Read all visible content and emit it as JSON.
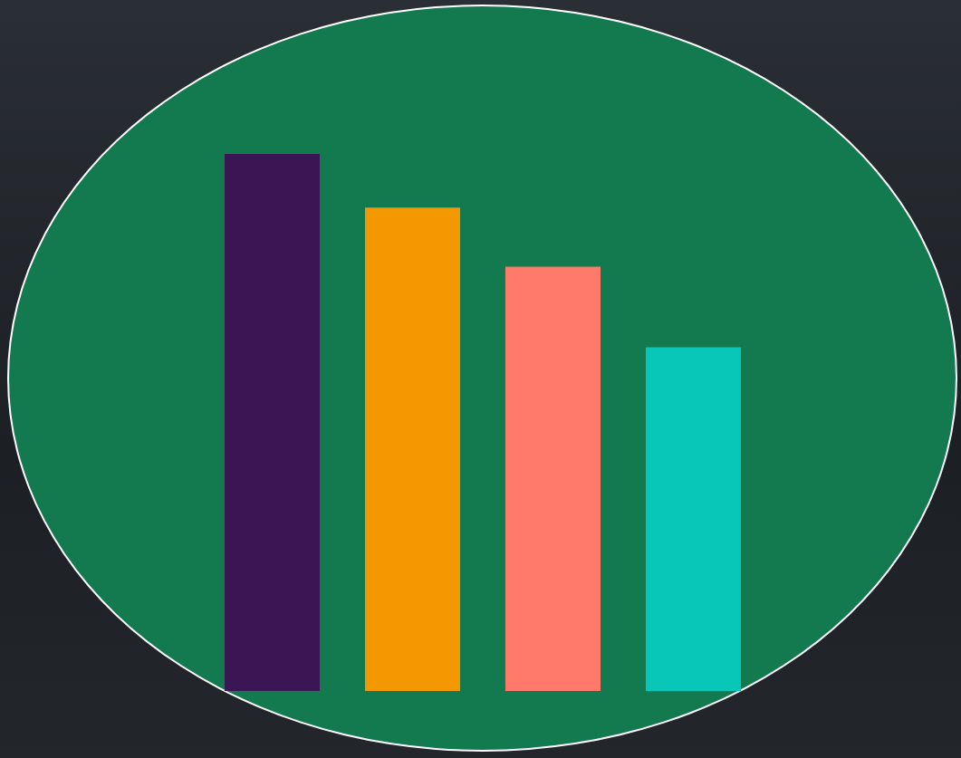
{
  "chart_data": {
    "type": "bar",
    "categories": [
      null,
      null,
      null,
      null
    ],
    "values": [
      100,
      90,
      79,
      64
    ],
    "colors": [
      "#3a1754",
      "#f39800",
      "#ff7a6b",
      "#08c6b8"
    ],
    "ylim": [
      0,
      100
    ],
    "grid": false,
    "tick_labels": false
  }
}
